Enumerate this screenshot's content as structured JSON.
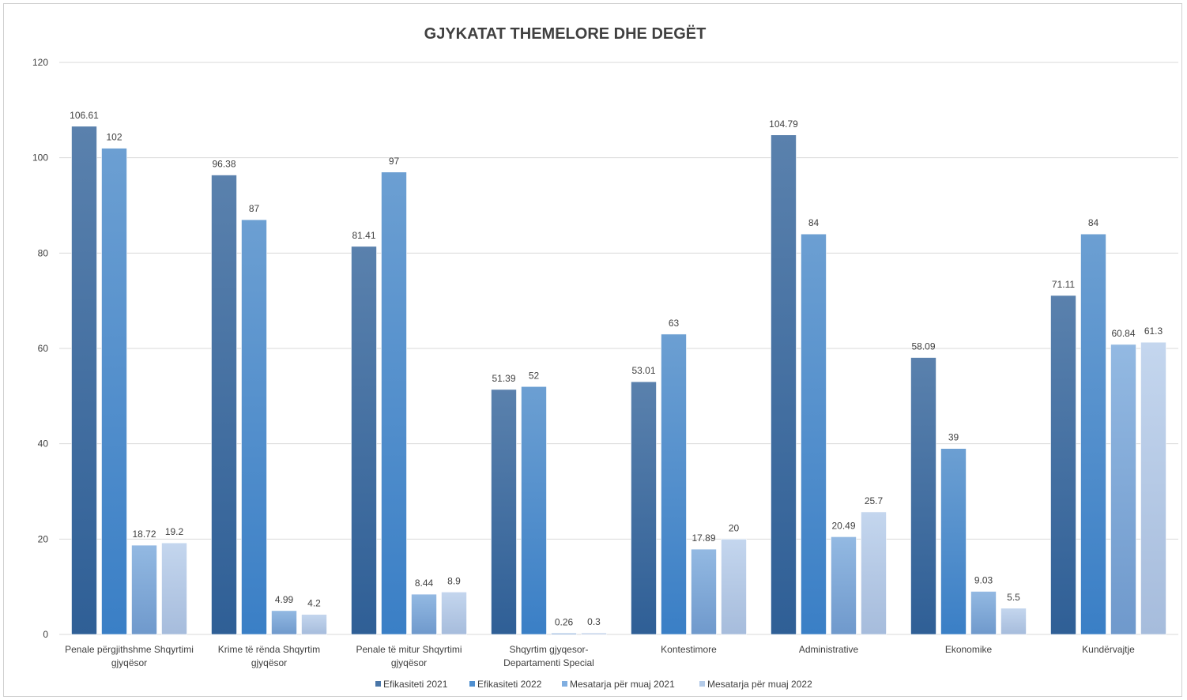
{
  "chart_data": {
    "type": "bar",
    "title": "GJYKATAT THEMELORE DHE DEGËT",
    "xlabel": "",
    "ylabel": "",
    "ylim": [
      0,
      120
    ],
    "yticks": [
      0,
      20,
      40,
      60,
      80,
      100,
      120
    ],
    "grid": true,
    "legend_position": "bottom",
    "categories": [
      [
        "Penale përgjithshme Shqyrtimi",
        "gjyqësor"
      ],
      [
        "Krime të rënda Shqyrtim",
        "gjyqësor"
      ],
      [
        "Penale të mitur Shqyrtimi",
        "gjyqësor"
      ],
      [
        "Shqyrtim gjyqesor-",
        "Departamenti Special"
      ],
      [
        "Kontestimore"
      ],
      [
        "Administrative"
      ],
      [
        "Ekonomike"
      ],
      [
        "Kundërvajtje"
      ]
    ],
    "series": [
      {
        "name": "Efikasiteti 2021",
        "color": "#4a76a8",
        "color_top": "#5a81ad",
        "color_bottom": "#2f5f96",
        "values": [
          106.61,
          96.38,
          81.41,
          51.39,
          53.01,
          104.79,
          58.09,
          71.11
        ]
      },
      {
        "name": "Efikasiteti 2022",
        "color": "#4f8fd0",
        "color_top": "#6c9fd2",
        "color_bottom": "#3a7fc6",
        "values": [
          102,
          87,
          97,
          52,
          63,
          84,
          39,
          84
        ]
      },
      {
        "name": "Mesatarja për muaj 2021",
        "color": "#80aee0",
        "color_top": "#93b9e2",
        "color_bottom": "#6f99cc",
        "values": [
          18.72,
          4.99,
          8.44,
          0.26,
          17.89,
          20.49,
          9.03,
          60.84
        ]
      },
      {
        "name": "Mesatarja për muaj 2022",
        "color": "#b4cbe8",
        "color_top": "#c4d6ee",
        "color_bottom": "#a6bcdc",
        "values": [
          19.2,
          4.2,
          8.9,
          0.3,
          20,
          25.7,
          5.5,
          61.3
        ]
      }
    ]
  }
}
